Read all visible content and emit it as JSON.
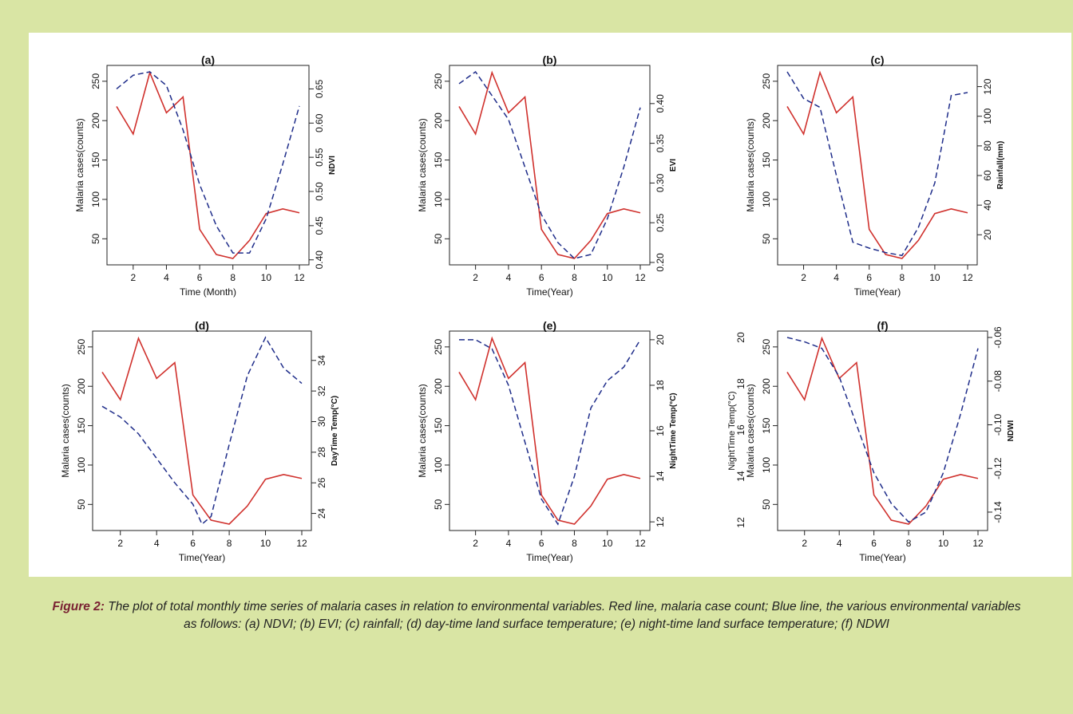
{
  "figure_caption": {
    "label": "Figure 2:",
    "text": "The plot of total monthly time series of malaria cases in relation to environmental variables. Red line, malaria case count; Blue line, the various environmental variables as follows: (a) NDVI; (b) EVI; (c) rainfall; (d) day-time land surface temperature; (e) night-time land surface temperature; (f) NDWI"
  },
  "colors": {
    "malaria": "#d0312d",
    "env": "#1f2d8a"
  },
  "chart_data": [
    {
      "type": "line",
      "title": "(a)",
      "xlabel": "Time (Month)",
      "ylabel": "Malaria cases(counts)",
      "y2label": "NDVI",
      "x": [
        1,
        2,
        3,
        4,
        5,
        6,
        7,
        8,
        9,
        10,
        11,
        12
      ],
      "xlim": [
        1,
        12
      ],
      "xticks": [
        2,
        4,
        6,
        8,
        10,
        12
      ],
      "ylim": [
        25,
        262
      ],
      "yticks": [
        50,
        100,
        150,
        200,
        250
      ],
      "y2lim": [
        0.402,
        0.675
      ],
      "y2ticks": [
        0.4,
        0.45,
        0.5,
        0.55,
        0.6,
        0.65
      ],
      "y2ticklabels": [
        "0.40",
        "0.45",
        "0.50",
        "0.55",
        "0.60",
        "0.65"
      ],
      "series": [
        {
          "values": [
            218,
            183,
            261,
            210,
            230,
            62,
            30,
            25,
            48,
            82,
            88,
            83
          ]
        },
        {
          "values": [
            0.65,
            0.67,
            0.675,
            0.655,
            0.59,
            0.51,
            0.45,
            0.41,
            0.41,
            0.46,
            0.54,
            0.625
          ]
        }
      ]
    },
    {
      "type": "line",
      "title": "(b)",
      "xlabel": "Time(Year)",
      "ylabel": "Malaria cases(counts)",
      "y2label": "EVI",
      "x": [
        1,
        2,
        3,
        4,
        5,
        6,
        7,
        8,
        9,
        10,
        11,
        12
      ],
      "xlim": [
        1,
        12
      ],
      "xticks": [
        2,
        4,
        6,
        8,
        10,
        12
      ],
      "ylim": [
        25,
        262
      ],
      "yticks": [
        50,
        100,
        150,
        200,
        250
      ],
      "y2lim": [
        0.205,
        0.44
      ],
      "y2ticks": [
        0.2,
        0.25,
        0.3,
        0.35,
        0.4
      ],
      "y2ticklabels": [
        "0.20",
        "0.25",
        "0.30",
        "0.35",
        "0.40"
      ],
      "series": [
        {
          "values": [
            218,
            183,
            261,
            210,
            230,
            62,
            30,
            25,
            48,
            82,
            88,
            83
          ]
        },
        {
          "values": [
            0.425,
            0.44,
            0.41,
            0.38,
            0.32,
            0.26,
            0.225,
            0.205,
            0.21,
            0.255,
            0.32,
            0.395
          ]
        }
      ]
    },
    {
      "type": "line",
      "title": "(c)",
      "xlabel": "Time(Year)",
      "ylabel": "Malaria cases(counts)",
      "y2label": "Rainfall(mm)",
      "x": [
        1,
        2,
        3,
        4,
        5,
        6,
        7,
        8,
        9,
        10,
        11,
        12
      ],
      "xlim": [
        1,
        12
      ],
      "xticks": [
        2,
        4,
        6,
        8,
        10,
        12
      ],
      "ylim": [
        25,
        262
      ],
      "yticks": [
        50,
        100,
        150,
        200,
        250
      ],
      "y2lim": [
        4,
        130
      ],
      "y2ticks": [
        20,
        40,
        60,
        80,
        100,
        120
      ],
      "y2ticklabels": [
        "20",
        "40",
        "60",
        "80",
        "100",
        "120"
      ],
      "series": [
        {
          "values": [
            218,
            183,
            261,
            210,
            230,
            62,
            30,
            25,
            48,
            82,
            88,
            83
          ]
        },
        {
          "values": [
            130,
            112,
            106,
            60,
            15,
            11,
            8,
            6,
            25,
            55,
            114,
            116
          ]
        }
      ]
    },
    {
      "type": "line",
      "title": "(d)",
      "xlabel": "Time(Year)",
      "ylabel": "Malaria cases(counts)",
      "y2label": "DayTime Temp(°C)",
      "x": [
        1,
        2,
        3,
        4,
        5,
        6,
        7,
        8,
        9,
        10,
        11,
        12
      ],
      "xlim": [
        1,
        12
      ],
      "xticks": [
        2,
        4,
        6,
        8,
        10,
        12
      ],
      "ylim": [
        25,
        262
      ],
      "yticks": [
        50,
        100,
        150,
        200,
        250
      ],
      "y2lim": [
        23.3,
        35.5
      ],
      "y2ticks": [
        24,
        26,
        28,
        30,
        32,
        34
      ],
      "y2ticklabels": [
        "24",
        "26",
        "28",
        "30",
        "32",
        "34"
      ],
      "series": [
        {
          "values": [
            218,
            183,
            261,
            210,
            230,
            62,
            30,
            25,
            48,
            82,
            88,
            83
          ]
        },
        {
          "values": [
            31.0,
            30.3,
            29.2,
            27.6,
            26.0,
            24.6,
            23.3,
            23.8,
            28.5,
            33.0,
            35.5,
            33.5,
            32.5
          ],
          "x": [
            1,
            2,
            3,
            4,
            5,
            6,
            6.5,
            7,
            8,
            9,
            10,
            11,
            12
          ]
        }
      ]
    },
    {
      "type": "line",
      "title": "(e)",
      "xlabel": "Time(Year)",
      "ylabel": "Malaria cases(counts)",
      "y2label": "NightTime Temp(°C)",
      "x": [
        1,
        2,
        3,
        4,
        5,
        6,
        7,
        8,
        9,
        10,
        11,
        12
      ],
      "xlim": [
        1,
        12
      ],
      "xticks": [
        2,
        4,
        6,
        8,
        10,
        12
      ],
      "ylim": [
        25,
        262
      ],
      "yticks": [
        50,
        100,
        150,
        200,
        250
      ],
      "y2lim": [
        11.9,
        20.1
      ],
      "y2ticks": [
        12,
        14,
        16,
        18,
        20
      ],
      "y2ticklabels": [
        "12",
        "14",
        "16",
        "18",
        "20"
      ],
      "series": [
        {
          "values": [
            218,
            183,
            261,
            210,
            230,
            62,
            30,
            25,
            48,
            82,
            88,
            83
          ]
        },
        {
          "values": [
            20.0,
            20.0,
            19.6,
            18.0,
            15.5,
            13.0,
            11.9,
            14.0,
            17.0,
            18.2,
            18.8,
            20.0
          ]
        }
      ]
    },
    {
      "type": "line",
      "title": "(f)",
      "xlabel": "Time(Year)",
      "ylabel": "Malaria cases(counts)",
      "y2label": "NDWI",
      "extra_labels": [
        "20",
        "18",
        "16",
        "14",
        "12",
        "NightTime Temp(°C)"
      ],
      "x": [
        1,
        2,
        3,
        4,
        5,
        6,
        7,
        8,
        9,
        10,
        11,
        12
      ],
      "xlim": [
        1,
        12
      ],
      "xticks": [
        2,
        4,
        6,
        8,
        10,
        12
      ],
      "ylim": [
        25,
        262
      ],
      "yticks": [
        50,
        100,
        150,
        200,
        250
      ],
      "y2lim": [
        -0.1455,
        -0.06
      ],
      "y2ticks": [
        -0.14,
        -0.12,
        -0.1,
        -0.08,
        -0.06
      ],
      "y2ticklabels": [
        "-0.14",
        "-0.12",
        "-0.10",
        "-0.08",
        "-0.06"
      ],
      "series": [
        {
          "values": [
            218,
            183,
            261,
            210,
            230,
            62,
            30,
            25,
            48,
            82,
            88,
            83
          ]
        },
        {
          "values": [
            -0.06,
            -0.062,
            -0.065,
            -0.078,
            -0.1,
            -0.122,
            -0.136,
            -0.1445,
            -0.14,
            -0.122,
            -0.095,
            -0.065
          ]
        }
      ]
    }
  ]
}
